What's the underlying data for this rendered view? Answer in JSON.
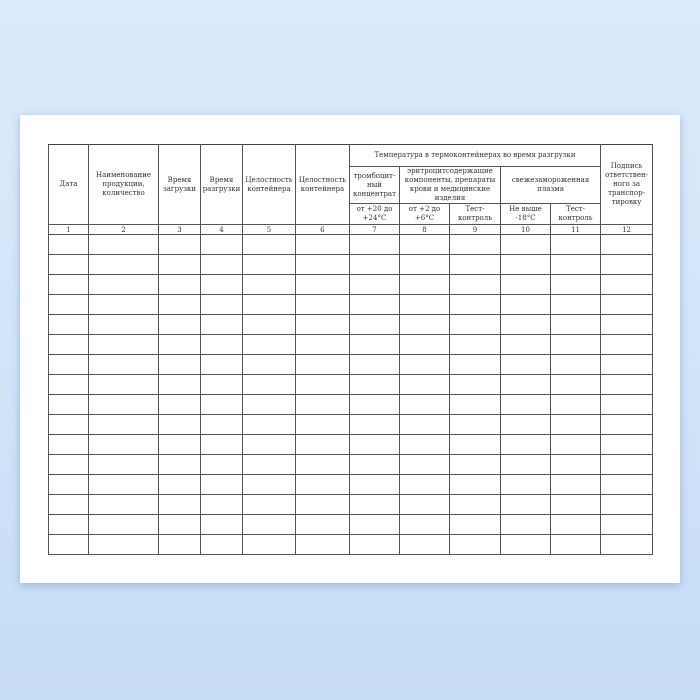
{
  "columns": {
    "date": "Дата",
    "product": "Наименование продукции, количество",
    "load_time": "Время загрузки",
    "unload_time": "Время разгрузки",
    "integrity1": "Целостность контейнера",
    "integrity2": "Целостность контейнера",
    "temp_group": "Температура в термоконтейнерах во время разгрузки",
    "platelet": "тромбоцит-ный концентрат",
    "erythro": "эритроцитсодержащие компоненты, препараты крови и медицинские изделия",
    "plasma": "свежезамороженная плазма",
    "signature": "Подпись ответствен-ного за транспор-тировку",
    "t1": "от +20 до +24°С",
    "t2": "от +2 до +6°С",
    "t3": "Тест-контроль",
    "t4": "Не выше -18°С",
    "t5": "Тест-контроль"
  },
  "numbers": [
    "1",
    "2",
    "3",
    "4",
    "5",
    "6",
    "7",
    "8",
    "9",
    "10",
    "11",
    "12"
  ],
  "empty_rows": 16
}
